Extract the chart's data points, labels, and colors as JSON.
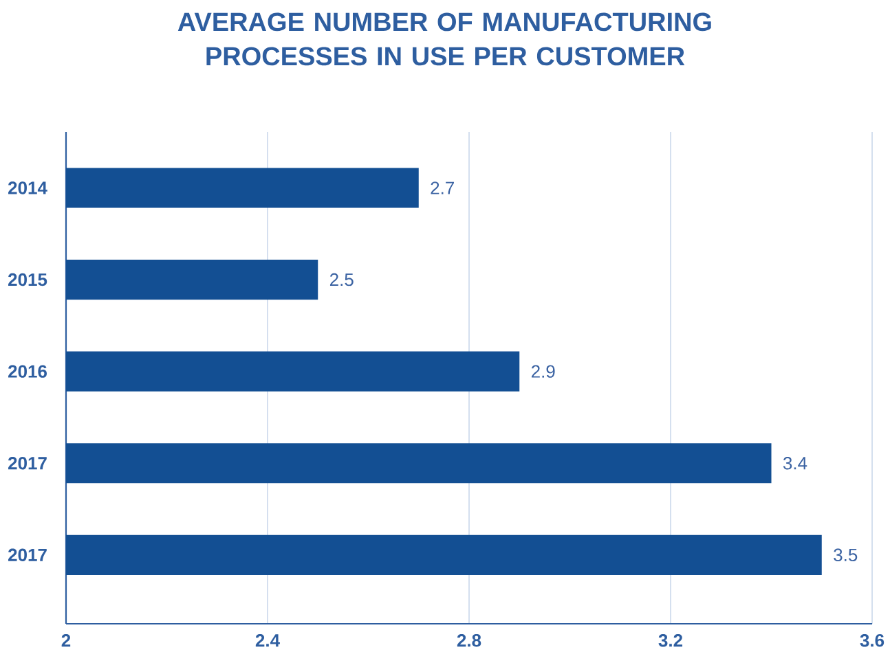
{
  "chart_data": {
    "type": "bar",
    "orientation": "horizontal",
    "title": "AVERAGE NUMBER OF MANUFACTURING PROCESSES IN USE PER CUSTOMER",
    "categories": [
      "2014",
      "2015",
      "2016",
      "2017",
      "2017"
    ],
    "values": [
      2.7,
      2.5,
      2.9,
      3.4,
      3.5
    ],
    "color": "#134f93",
    "xlim": [
      2,
      3.6
    ],
    "xticks": [
      2,
      2.4,
      2.8,
      3.2,
      3.6
    ],
    "grid": "x",
    "data_labels": true
  }
}
